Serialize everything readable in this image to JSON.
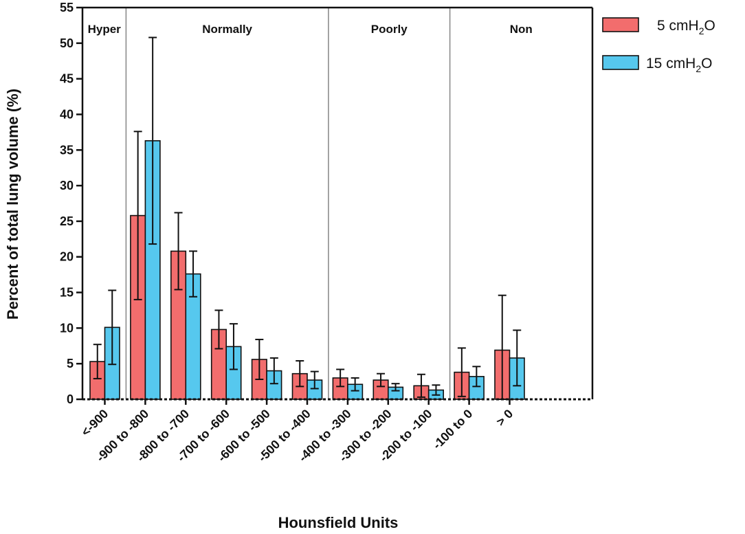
{
  "chart_data": {
    "type": "bar",
    "title": "",
    "xlabel": "Hounsfield Units",
    "ylabel": "Percent of total lung volume (%)",
    "ylim": [
      0,
      55
    ],
    "yticks": [
      0,
      5,
      10,
      15,
      20,
      25,
      30,
      35,
      40,
      45,
      50,
      55
    ],
    "categories": [
      "<-900",
      "-900 to -800",
      "-800 to -700",
      "-700 to -600",
      "-600 to -500",
      "-500 to -400",
      "-400 to -300",
      "-300 to -200",
      "-200 to -100",
      "-100 to 0",
      "> 0"
    ],
    "series": [
      {
        "name": "5 cmH2O",
        "legend_main": "5 cmH",
        "legend_sub": "2",
        "legend_tail": "O",
        "color": "#f26d6d",
        "values": [
          5.3,
          25.8,
          20.8,
          9.8,
          5.6,
          3.6,
          3.0,
          2.7,
          1.9,
          3.8,
          6.9
        ],
        "error": [
          2.4,
          11.8,
          5.4,
          2.7,
          2.8,
          1.8,
          1.2,
          0.9,
          1.6,
          3.4,
          7.7
        ]
      },
      {
        "name": "15 cmH2O",
        "legend_main": "15 cmH",
        "legend_sub": "2",
        "legend_tail": "O",
        "color": "#56c8ee",
        "values": [
          10.1,
          36.3,
          17.6,
          7.4,
          4.0,
          2.7,
          2.1,
          1.7,
          1.3,
          3.2,
          5.8
        ],
        "error": [
          5.2,
          14.5,
          3.2,
          3.2,
          1.8,
          1.2,
          0.9,
          0.5,
          0.7,
          1.4,
          3.9
        ]
      }
    ],
    "regions": [
      {
        "label": "Hyper",
        "from": 0,
        "to": 1
      },
      {
        "label": "Normally",
        "from": 1,
        "to": 6
      },
      {
        "label": "Poorly",
        "from": 6,
        "to": 9
      },
      {
        "label": "Non",
        "from": 9,
        "to": 11
      }
    ],
    "legend_position": "top-right"
  }
}
